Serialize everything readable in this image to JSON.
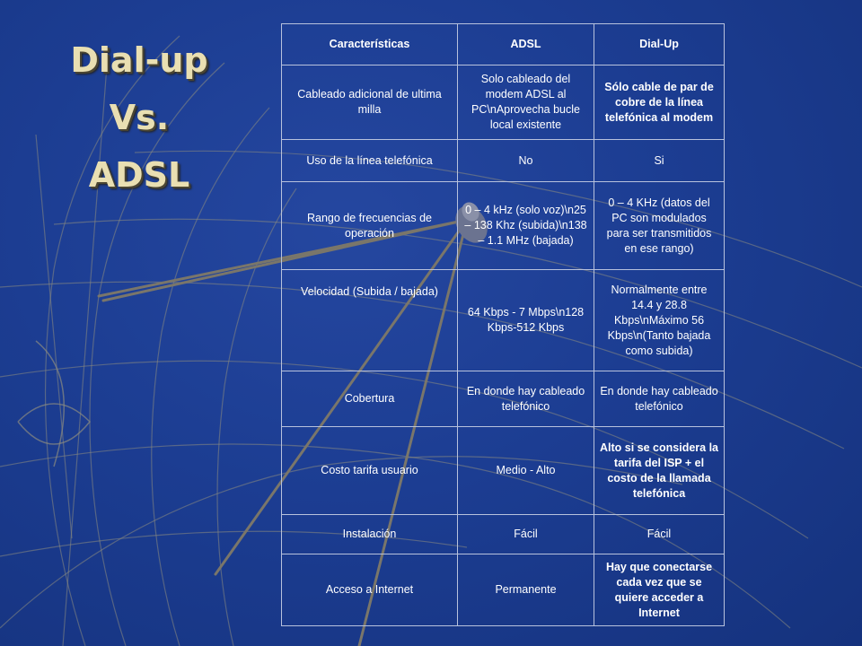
{
  "title_lines": [
    "Dial-up",
    "Vs.",
    "ADSL"
  ],
  "table": {
    "headers": [
      "Características",
      "ADSL",
      "Dial-Up"
    ],
    "rows": [
      [
        "Cableado adicional de ultima milla",
        "Solo cableado del modem ADSL al PC\\nAprovecha bucle local existente",
        "Sólo cable de par de cobre de la línea telefónica al modem"
      ],
      [
        "Uso de la línea telefónica",
        "No",
        "Si"
      ],
      [
        "Rango de frecuencias de operación",
        "0 – 4 kHz (solo voz)\\n25 – 138 Khz (subida)\\n138 – 1.1 MHz (bajada)",
        "0 – 4 KHz (datos del PC son modulados para ser transmitidos en ese rango)"
      ],
      [
        "Velocidad (Subida / bajada)",
        "64 Kbps - 7 Mbps\\n128 Kbps-512 Kbps",
        "Normalmente entre 14.4 y 28.8 Kbps\\nMáximo 56 Kbps\\n(Tanto bajada como subida)"
      ],
      [
        "Cobertura",
        "En donde hay cableado telefónico",
        "En donde hay cableado telefónico"
      ],
      [
        "Costo tarifa usuario",
        "Medio - Alto",
        "Alto si se considera la tarifa del ISP + el costo de la llamada telefónica"
      ],
      [
        "Instalación",
        "Fácil",
        "Fácil"
      ],
      [
        "Acceso a Internet",
        "Permanente",
        "Hay que conectarse cada vez que se quiere acceder a  Internet"
      ]
    ]
  }
}
